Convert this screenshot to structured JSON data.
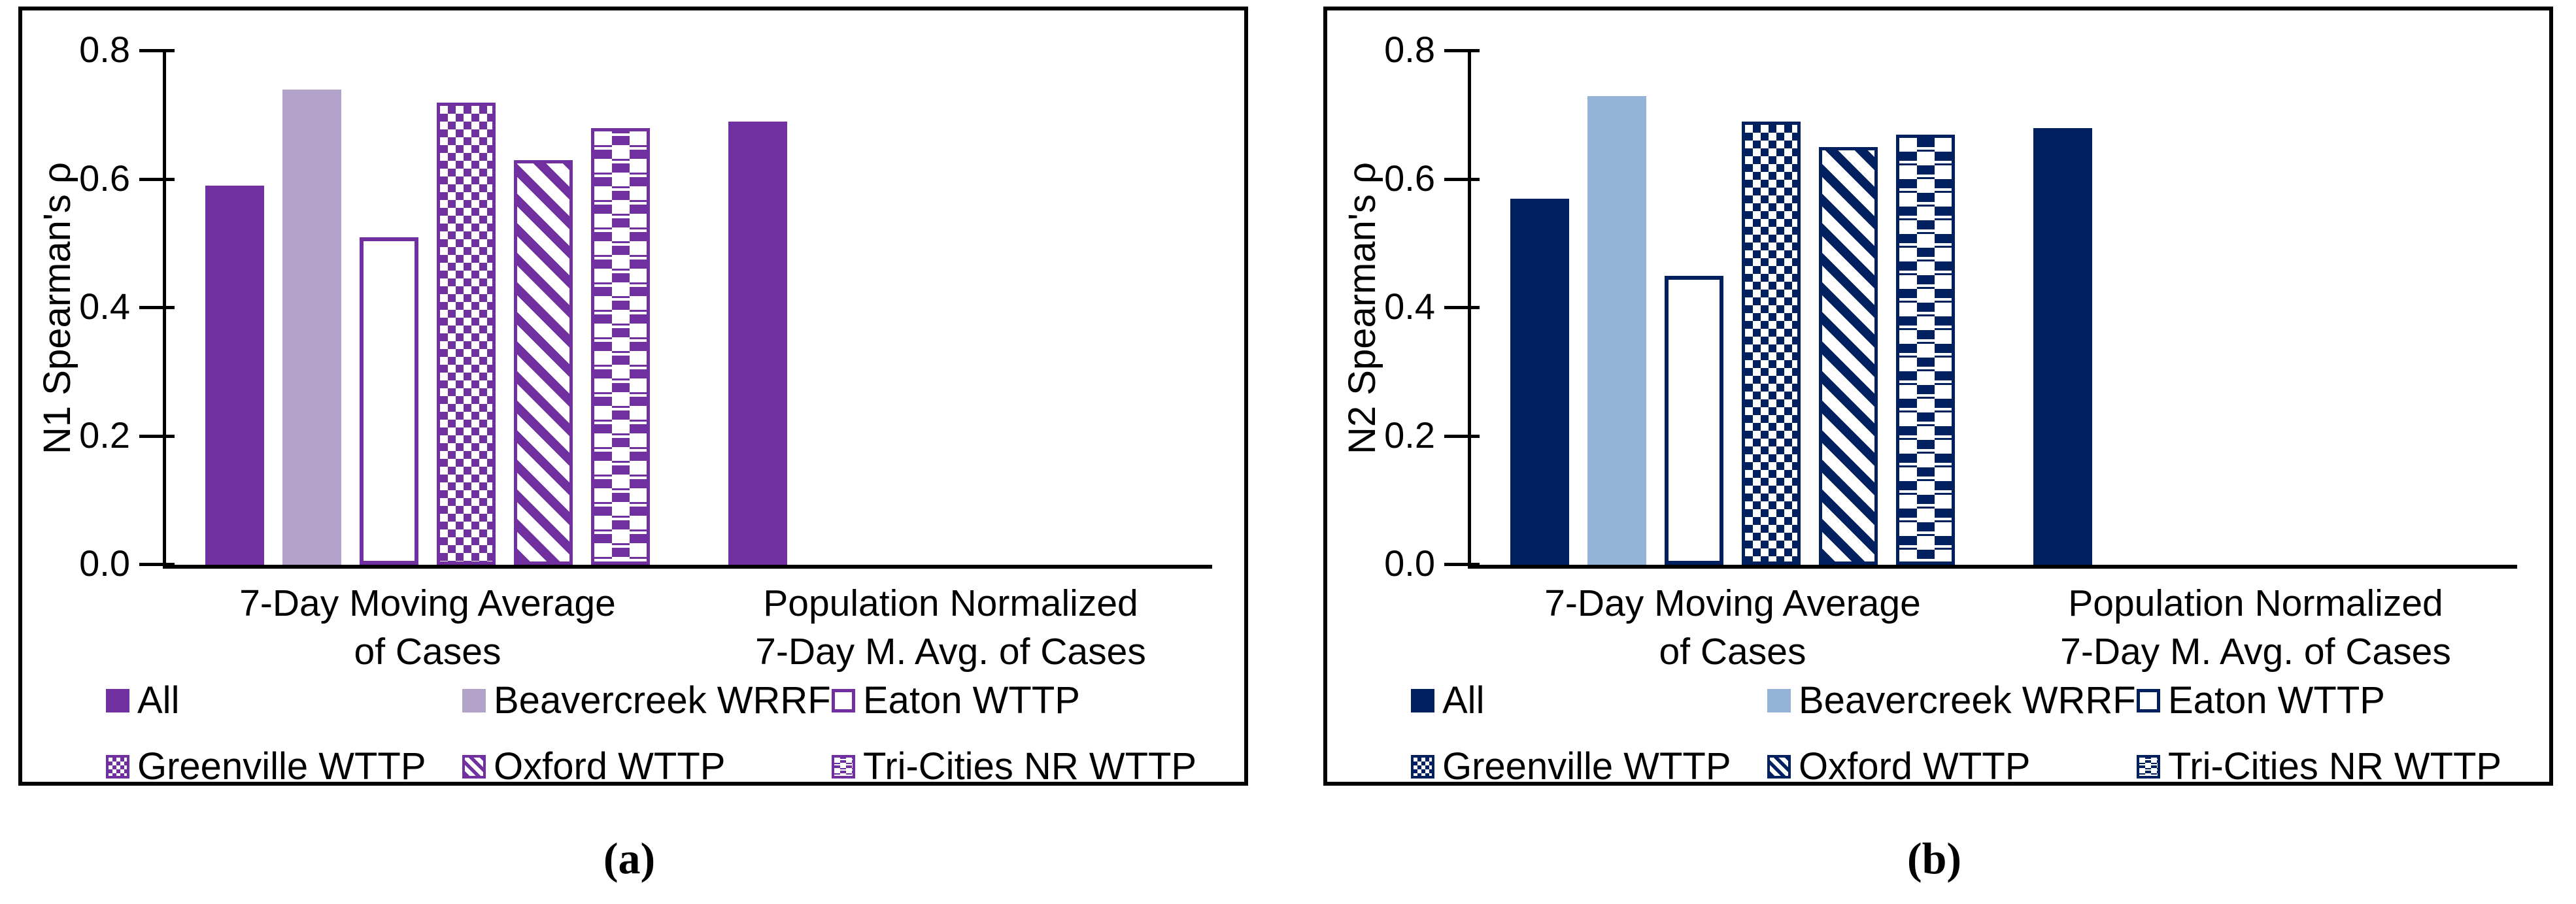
{
  "figure": {
    "background": "#ffffff",
    "captions": {
      "a": "(a)",
      "b": "(b)"
    }
  },
  "chart_data": [
    {
      "type": "bar",
      "panel": "a",
      "ylabel": "N1 Spearman's ρ",
      "ylim": [
        0,
        0.8
      ],
      "yticks": [
        "0.0",
        "0.2",
        "0.4",
        "0.6",
        "0.8"
      ],
      "grid": false,
      "legend_position": "bottom",
      "categories": [
        [
          "7-Day Moving Average",
          "of Cases"
        ],
        [
          "Population Normalized",
          "7-Day M. Avg. of Cases"
        ]
      ],
      "colors": {
        "dark": "#7030A0",
        "light": "#B2A2C9"
      },
      "series": [
        {
          "name": "All",
          "pattern": "solid-dark",
          "values": [
            0.59,
            0.69
          ]
        },
        {
          "name": "Beavercreek WRRF",
          "pattern": "solid-light",
          "values": [
            0.74,
            null
          ]
        },
        {
          "name": "Eaton WTTP",
          "pattern": "outline",
          "values": [
            0.51,
            null
          ]
        },
        {
          "name": "Greenville WTTP",
          "pattern": "checker",
          "values": [
            0.72,
            null
          ]
        },
        {
          "name": "Oxford WTTP",
          "pattern": "diagonal",
          "values": [
            0.63,
            null
          ]
        },
        {
          "name": "Tri-Cities NR WTTP",
          "pattern": "dash",
          "values": [
            0.68,
            null
          ]
        }
      ]
    },
    {
      "type": "bar",
      "panel": "b",
      "ylabel": "N2 Spearman's ρ",
      "ylim": [
        0,
        0.8
      ],
      "yticks": [
        "0.0",
        "0.2",
        "0.4",
        "0.6",
        "0.8"
      ],
      "grid": false,
      "legend_position": "bottom",
      "categories": [
        [
          "7-Day Moving Average",
          "of Cases"
        ],
        [
          "Population Normalized",
          "7-Day M. Avg. of Cases"
        ]
      ],
      "colors": {
        "dark": "#002060",
        "light": "#95B3D7"
      },
      "series": [
        {
          "name": "All",
          "pattern": "solid-dark",
          "values": [
            0.57,
            0.68
          ]
        },
        {
          "name": "Beavercreek WRRF",
          "pattern": "solid-light",
          "values": [
            0.73,
            null
          ]
        },
        {
          "name": "Eaton WTTP",
          "pattern": "outline",
          "values": [
            0.45,
            null
          ]
        },
        {
          "name": "Greenville WTTP",
          "pattern": "checker",
          "values": [
            0.69,
            null
          ]
        },
        {
          "name": "Oxford WTTP",
          "pattern": "diagonal",
          "values": [
            0.65,
            null
          ]
        },
        {
          "name": "Tri-Cities NR WTTP",
          "pattern": "dash",
          "values": [
            0.67,
            null
          ]
        }
      ]
    }
  ]
}
